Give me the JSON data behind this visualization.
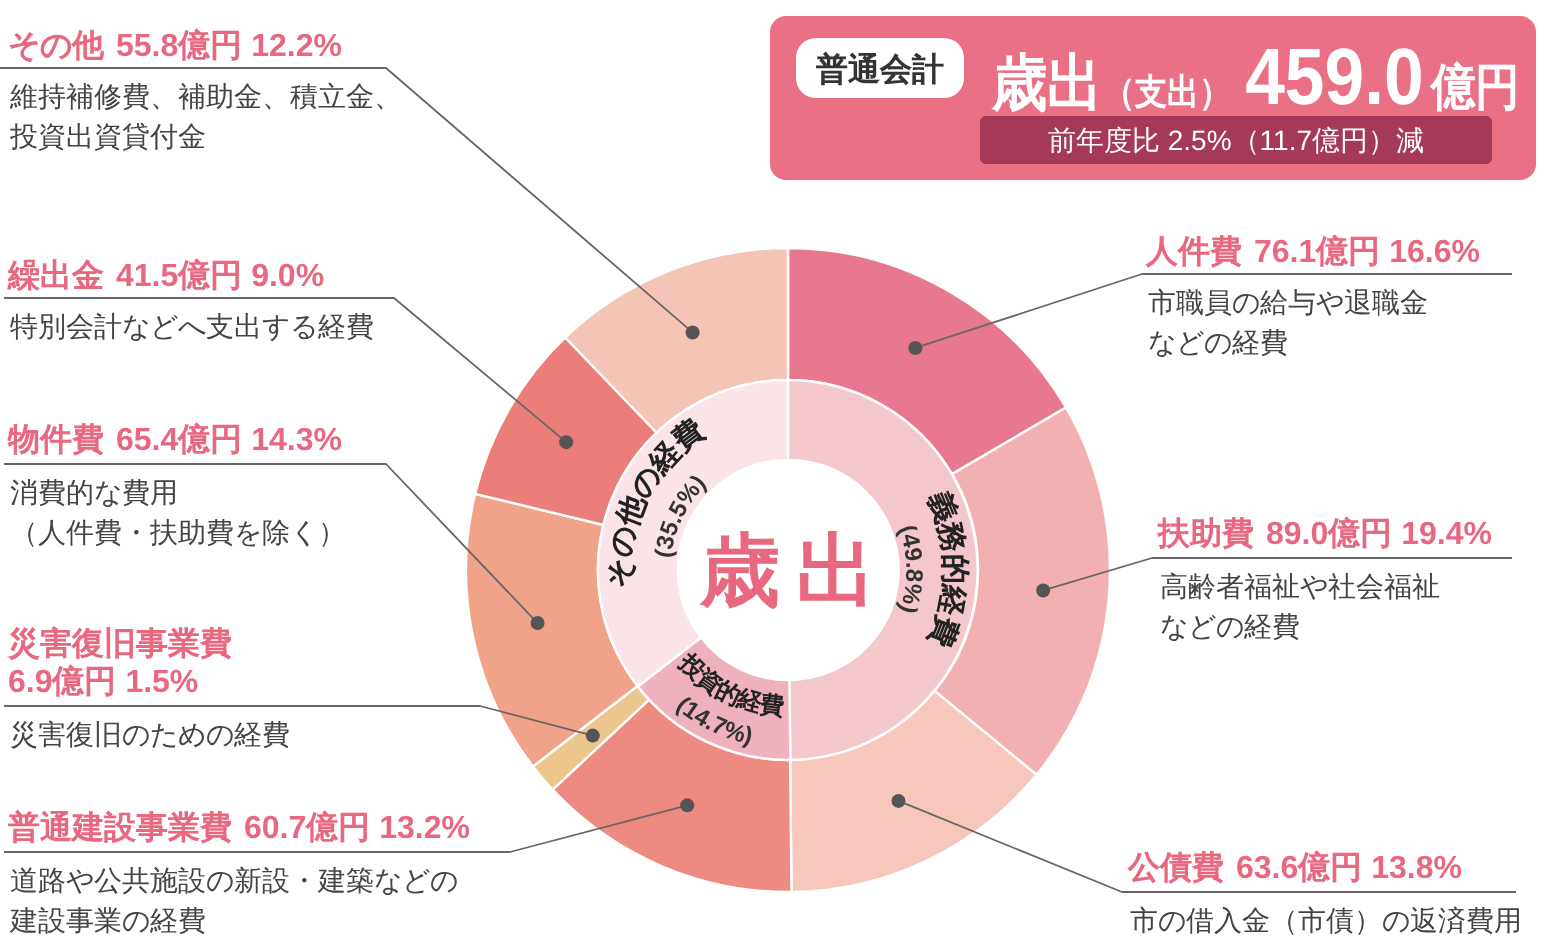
{
  "chart_data": [
    {
      "type": "donut",
      "title": "歳出（支出）459.0億円",
      "subtitle": "前年度比 2.5%（11.7億円）減",
      "categories": [
        "人件費",
        "扶助費",
        "公債費",
        "普通建設事業費",
        "災害復旧事業費",
        "物件費",
        "繰出金",
        "その他"
      ],
      "values": [
        76.1,
        89.0,
        63.6,
        60.7,
        6.9,
        65.4,
        41.5,
        55.8
      ],
      "value_labels": [
        "76.1億円 16.6%",
        "89.0億円 19.4%",
        "63.6億円 13.8%",
        "60.7億円 13.2%",
        "6.9億円 1.5%",
        "65.4億円 14.3%",
        "41.5億円 9.0%",
        "55.8億円 12.2%"
      ],
      "colors": [
        "#e8788f",
        "#f2b0b3",
        "#f6c7ba",
        "#ee8b80",
        "#ecc68c",
        "#f1a389",
        "#eb7e79",
        "#f4c5b7"
      ],
      "annotations": [
        "市職員の給与や退職金などの経費",
        "高齢者福祉や社会福祉などの経費",
        "市の借入金（市債）の返済費用",
        "道路や公共施設の新設・建築などの建設事業の経費",
        "災害復旧のための経費",
        "消費的な費用（人件費・扶助費を除く）",
        "特別会計などへ支出する経費",
        "維持補修費、補助金、積立金、投資出資貸付金",
        "普通会計"
      ]
    },
    {
      "type": "donut",
      "title": "歳出",
      "categories": [
        "義務的経費",
        "投資的経費",
        "その他の経費"
      ],
      "values": [
        49.8,
        14.7,
        35.5
      ],
      "value_labels": [
        "(49.8%)",
        "(14.7%)",
        "(35.5%)"
      ],
      "colors": [
        "#f4c7cc",
        "#f0b1bf",
        "#fbe4e7"
      ]
    }
  ]
}
